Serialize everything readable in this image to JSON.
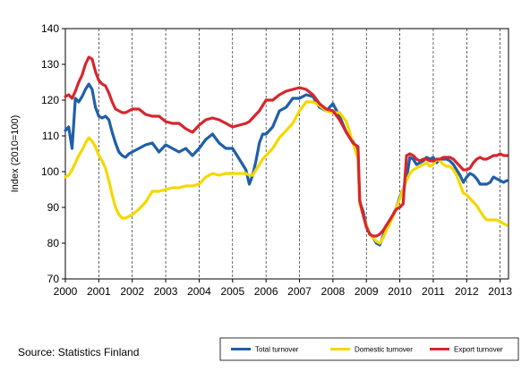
{
  "chart_data": {
    "type": "line",
    "ylabel": "Index (2010=100)",
    "xlabel": "",
    "ylim": [
      70,
      140
    ],
    "xlim": [
      2000,
      2013.25
    ],
    "yticks": [
      70,
      80,
      90,
      100,
      110,
      120,
      130,
      140
    ],
    "xticks": [
      "2000",
      "2001",
      "2002",
      "2003",
      "2004",
      "2005",
      "2006",
      "2007",
      "2008",
      "2009",
      "2010",
      "2011",
      "2012",
      "2013"
    ],
    "grid": "vertical dashed at years",
    "legend_position": "bottom-right",
    "x": [
      2000.0,
      2000.1,
      2000.2,
      2000.3,
      2000.4,
      2000.5,
      2000.6,
      2000.7,
      2000.8,
      2000.9,
      2001.0,
      2001.1,
      2001.2,
      2001.3,
      2001.4,
      2001.5,
      2001.6,
      2001.7,
      2001.8,
      2001.9,
      2002.0,
      2002.2,
      2002.4,
      2002.6,
      2002.8,
      2003.0,
      2003.2,
      2003.4,
      2003.6,
      2003.8,
      2004.0,
      2004.2,
      2004.4,
      2004.6,
      2004.8,
      2005.0,
      2005.2,
      2005.4,
      2005.5,
      2005.6,
      2005.7,
      2005.8,
      2005.9,
      2006.0,
      2006.2,
      2006.4,
      2006.6,
      2006.8,
      2007.0,
      2007.2,
      2007.4,
      2007.6,
      2007.8,
      2008.0,
      2008.2,
      2008.4,
      2008.6,
      2008.75,
      2008.8,
      2008.9,
      2009.0,
      2009.1,
      2009.2,
      2009.3,
      2009.4,
      2009.5,
      2009.6,
      2009.7,
      2009.8,
      2009.9,
      2010.0,
      2010.1,
      2010.2,
      2010.3,
      2010.4,
      2010.5,
      2010.6,
      2010.7,
      2010.8,
      2010.9,
      2011.0,
      2011.1,
      2011.2,
      2011.3,
      2011.4,
      2011.5,
      2011.6,
      2011.7,
      2011.8,
      2011.9,
      2012.0,
      2012.1,
      2012.2,
      2012.3,
      2012.4,
      2012.5,
      2012.6,
      2012.7,
      2012.8,
      2012.9,
      2013.0,
      2013.1,
      2013.2
    ],
    "series": [
      {
        "name": "Total turnover",
        "color": "#1f5fa8",
        "values": [
          111.5,
          112.5,
          106.5,
          120.5,
          119.5,
          121.0,
          123.0,
          124.5,
          123.0,
          118.0,
          115.5,
          115.0,
          115.5,
          114.5,
          111.0,
          108.0,
          105.5,
          104.5,
          104.0,
          105.0,
          105.5,
          106.5,
          107.5,
          108.0,
          105.5,
          107.5,
          106.5,
          105.5,
          106.5,
          104.5,
          106.5,
          109.0,
          110.5,
          108.0,
          106.5,
          106.5,
          103.5,
          100.5,
          96.5,
          99.0,
          103.0,
          108.0,
          110.5,
          110.5,
          112.5,
          117.0,
          118.0,
          120.5,
          120.5,
          121.5,
          121.0,
          118.0,
          117.0,
          119.0,
          115.5,
          111.0,
          108.5,
          105.0,
          91.5,
          89.0,
          85.0,
          82.5,
          81.5,
          80.0,
          79.5,
          82.0,
          84.0,
          86.0,
          88.0,
          90.0,
          93.0,
          95.0,
          98.0,
          104.0,
          103.5,
          102.0,
          102.5,
          103.0,
          104.0,
          103.5,
          104.0,
          102.5,
          103.5,
          103.5,
          103.5,
          103.0,
          102.0,
          100.5,
          99.0,
          97.0,
          98.5,
          99.5,
          99.0,
          98.0,
          96.5,
          96.5,
          96.5,
          97.0,
          98.5,
          98.0,
          97.5,
          97.0,
          97.5
        ]
      },
      {
        "name": "Domestic turnover",
        "color": "#f5d800",
        "values": [
          98.5,
          99.0,
          100.5,
          102.5,
          104.5,
          106.0,
          108.0,
          109.5,
          108.5,
          107.0,
          104.5,
          103.0,
          101.0,
          97.5,
          93.5,
          90.0,
          88.0,
          87.0,
          87.0,
          87.5,
          88.0,
          89.5,
          91.5,
          94.5,
          94.5,
          95.0,
          95.5,
          95.5,
          96.0,
          96.0,
          96.5,
          98.5,
          99.5,
          99.0,
          99.5,
          99.5,
          99.5,
          99.5,
          99.0,
          99.0,
          100.5,
          102.0,
          103.5,
          104.5,
          106.5,
          109.5,
          111.5,
          113.5,
          117.0,
          119.5,
          119.5,
          118.5,
          117.0,
          116.5,
          116.5,
          114.0,
          108.0,
          103.5,
          91.0,
          88.0,
          85.0,
          82.5,
          81.5,
          80.5,
          80.0,
          81.5,
          83.5,
          85.5,
          87.5,
          90.0,
          92.5,
          95.0,
          97.5,
          99.5,
          100.5,
          101.0,
          101.5,
          102.0,
          102.5,
          101.5,
          102.0,
          103.5,
          103.0,
          102.0,
          101.5,
          101.5,
          100.5,
          99.0,
          96.5,
          94.0,
          93.5,
          92.5,
          91.5,
          90.5,
          89.0,
          87.5,
          86.5,
          86.5,
          86.5,
          86.5,
          86.0,
          85.5,
          85.0
        ]
      },
      {
        "name": "Export turnover",
        "color": "#d7262e",
        "values": [
          121.0,
          121.5,
          120.5,
          122.5,
          125.0,
          127.0,
          130.0,
          132.0,
          131.5,
          128.0,
          125.5,
          124.5,
          124.0,
          122.0,
          119.5,
          117.5,
          117.0,
          116.5,
          116.5,
          117.0,
          117.5,
          117.5,
          116.0,
          115.5,
          115.5,
          114.0,
          113.5,
          113.5,
          112.0,
          111.0,
          113.0,
          114.5,
          115.0,
          114.5,
          113.5,
          112.5,
          113.0,
          113.5,
          114.0,
          115.0,
          116.0,
          117.0,
          118.5,
          120.0,
          120.0,
          121.5,
          122.5,
          123.0,
          123.5,
          123.0,
          121.5,
          119.0,
          117.5,
          117.0,
          114.5,
          111.0,
          108.0,
          107.0,
          92.0,
          88.0,
          84.5,
          82.5,
          82.0,
          82.0,
          82.5,
          83.5,
          85.0,
          86.5,
          88.0,
          89.5,
          90.0,
          91.0,
          104.5,
          105.0,
          104.5,
          103.5,
          103.0,
          103.5,
          103.5,
          103.0,
          103.0,
          103.5,
          103.5,
          104.0,
          104.0,
          104.0,
          103.5,
          102.5,
          101.5,
          100.5,
          100.5,
          101.0,
          102.5,
          103.5,
          104.0,
          103.5,
          103.5,
          104.0,
          104.5,
          104.5,
          105.0,
          104.5,
          104.5
        ]
      }
    ]
  },
  "source_text": "Source: Statistics Finland",
  "legend": {
    "items": [
      {
        "label": "Total turnover",
        "color": "#1f5fa8"
      },
      {
        "label": "Domestic turnover",
        "color": "#f5d800"
      },
      {
        "label": "Export turnover",
        "color": "#d7262e"
      }
    ]
  }
}
